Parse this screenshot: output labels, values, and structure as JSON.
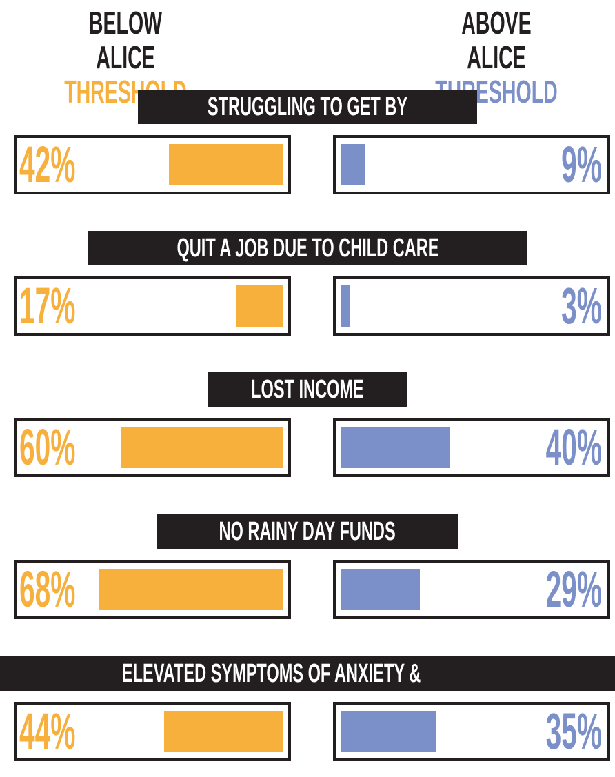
{
  "headers": {
    "below_line1": "BELOW ALICE",
    "below_line2": "THRESHOLD",
    "above_line1": "ABOVE ALICE",
    "above_line2": "THRESHOLD"
  },
  "colors": {
    "below": "#f7b03c",
    "above": "#7b8fc8",
    "dark": "#231f20"
  },
  "chart_data": {
    "type": "bar",
    "categories": [
      "STRUGGLING TO GET BY",
      "QUIT A JOB DUE TO CHILD CARE",
      "LOST INCOME",
      "NO RAINY DAY FUNDS",
      "ELEVATED SYMPTOMS OF ANXIETY & DEPRESSION"
    ],
    "series": [
      {
        "name": "BELOW ALICE THRESHOLD",
        "values": [
          42,
          17,
          60,
          68,
          44
        ],
        "labels": [
          "42%",
          "17%",
          "60%",
          "68%",
          "44%"
        ]
      },
      {
        "name": "ABOVE ALICE THRESHOLD",
        "values": [
          9,
          3,
          40,
          29,
          35
        ],
        "labels": [
          "9%",
          "3%",
          "40%",
          "29%",
          "35%"
        ]
      }
    ],
    "ylim": [
      0,
      100
    ]
  }
}
